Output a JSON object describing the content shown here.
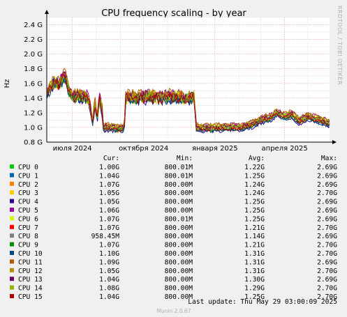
{
  "chart_data": {
    "type": "line",
    "title": "CPU frequency scaling - by year",
    "ylabel": "Hz",
    "side_label": "RRDTOOL / TOBI OETIKER",
    "ylim": [
      800000000.0,
      2500000000.0
    ],
    "y_ticks": [
      {
        "v": 800000000.0,
        "label": "0.8 G"
      },
      {
        "v": 1000000000.0,
        "label": "1.0 G"
      },
      {
        "v": 1200000000.0,
        "label": "1.2 G"
      },
      {
        "v": 1400000000.0,
        "label": "1.4 G"
      },
      {
        "v": 1600000000.0,
        "label": "1.6 G"
      },
      {
        "v": 1800000000.0,
        "label": "1.8 G"
      },
      {
        "v": 2000000000.0,
        "label": "2.0 G"
      },
      {
        "v": 2200000000.0,
        "label": "2.2 G"
      },
      {
        "v": 2400000000.0,
        "label": "2.4 G"
      }
    ],
    "x_range": [
      "2024-05-29",
      "2025-05-29"
    ],
    "x_ticks": [
      {
        "date": "2024-07-01",
        "label": "июля 2024"
      },
      {
        "date": "2024-10-01",
        "label": "октября 2024"
      },
      {
        "date": "2025-01-01",
        "label": "января 2025"
      },
      {
        "date": "2025-04-01",
        "label": "апреля 2025"
      }
    ],
    "grid": true,
    "profile": [
      {
        "date": "2024-05-29",
        "v": 1450000000.0
      },
      {
        "date": "2024-06-03",
        "v": 1550000000.0
      },
      {
        "date": "2024-06-08",
        "v": 1620000000.0
      },
      {
        "date": "2024-06-13",
        "v": 1580000000.0
      },
      {
        "date": "2024-06-18",
        "v": 1660000000.0
      },
      {
        "date": "2024-06-22",
        "v": 1720000000.0
      },
      {
        "date": "2024-06-26",
        "v": 1500000000.0
      },
      {
        "date": "2024-06-30",
        "v": 1440000000.0
      },
      {
        "date": "2024-07-05",
        "v": 1420000000.0
      },
      {
        "date": "2024-07-10",
        "v": 1450000000.0
      },
      {
        "date": "2024-07-15",
        "v": 1400000000.0
      },
      {
        "date": "2024-07-20",
        "v": 1420000000.0
      },
      {
        "date": "2024-07-24",
        "v": 1300000000.0
      },
      {
        "date": "2024-07-27",
        "v": 1050000000.0
      },
      {
        "date": "2024-07-30",
        "v": 1350000000.0
      },
      {
        "date": "2024-08-02",
        "v": 1100000000.0
      },
      {
        "date": "2024-08-05",
        "v": 1400000000.0
      },
      {
        "date": "2024-08-08",
        "v": 1300000000.0
      },
      {
        "date": "2024-08-10",
        "v": 1000000000.0
      },
      {
        "date": "2024-08-20",
        "v": 1000000000.0
      },
      {
        "date": "2024-08-30",
        "v": 980000000.0
      },
      {
        "date": "2024-09-06",
        "v": 1000000000.0
      },
      {
        "date": "2024-09-08",
        "v": 1420000000.0
      },
      {
        "date": "2024-09-20",
        "v": 1400000000.0
      },
      {
        "date": "2024-10-05",
        "v": 1420000000.0
      },
      {
        "date": "2024-10-20",
        "v": 1410000000.0
      },
      {
        "date": "2024-11-05",
        "v": 1420000000.0
      },
      {
        "date": "2024-11-20",
        "v": 1400000000.0
      },
      {
        "date": "2024-12-05",
        "v": 1420000000.0
      },
      {
        "date": "2024-12-08",
        "v": 1000000000.0
      },
      {
        "date": "2024-12-25",
        "v": 990000000.0
      },
      {
        "date": "2025-01-15",
        "v": 1000000000.0
      },
      {
        "date": "2025-02-05",
        "v": 1000000000.0
      },
      {
        "date": "2025-02-20",
        "v": 1050000000.0
      },
      {
        "date": "2025-03-01",
        "v": 1100000000.0
      },
      {
        "date": "2025-03-15",
        "v": 1140000000.0
      },
      {
        "date": "2025-03-22",
        "v": 1200000000.0
      },
      {
        "date": "2025-04-01",
        "v": 1150000000.0
      },
      {
        "date": "2025-04-10",
        "v": 1180000000.0
      },
      {
        "date": "2025-04-20",
        "v": 1080000000.0
      },
      {
        "date": "2025-05-01",
        "v": 1150000000.0
      },
      {
        "date": "2025-05-15",
        "v": 1100000000.0
      },
      {
        "date": "2025-05-29",
        "v": 1060000000.0
      }
    ],
    "series": [
      {
        "name": "CPU 0",
        "color": "#00cc00",
        "cur": "1.00G",
        "min": "800.01M",
        "avg": "1.22G",
        "max": "2.69G"
      },
      {
        "name": "CPU 1",
        "color": "#0066b3",
        "cur": "1.04G",
        "min": "800.01M",
        "avg": "1.25G",
        "max": "2.69G"
      },
      {
        "name": "CPU 2",
        "color": "#ff8000",
        "cur": "1.07G",
        "min": "800.00M",
        "avg": "1.24G",
        "max": "2.69G"
      },
      {
        "name": "CPU 3",
        "color": "#ffcc00",
        "cur": "1.05G",
        "min": "800.00M",
        "avg": "1.24G",
        "max": "2.70G"
      },
      {
        "name": "CPU 4",
        "color": "#330099",
        "cur": "1.05G",
        "min": "800.00M",
        "avg": "1.25G",
        "max": "2.69G"
      },
      {
        "name": "CPU 5",
        "color": "#990099",
        "cur": "1.06G",
        "min": "800.00M",
        "avg": "1.25G",
        "max": "2.69G"
      },
      {
        "name": "CPU 6",
        "color": "#ccff00",
        "cur": "1.07G",
        "min": "800.01M",
        "avg": "1.25G",
        "max": "2.69G"
      },
      {
        "name": "CPU 7",
        "color": "#ff0000",
        "cur": "1.07G",
        "min": "800.00M",
        "avg": "1.21G",
        "max": "2.70G"
      },
      {
        "name": "CPU 8",
        "color": "#808080",
        "cur": "958.45M",
        "min": "800.00M",
        "avg": "1.14G",
        "max": "2.69G"
      },
      {
        "name": "CPU 9",
        "color": "#008f00",
        "cur": "1.07G",
        "min": "800.00M",
        "avg": "1.21G",
        "max": "2.70G"
      },
      {
        "name": "CPU 10",
        "color": "#00487d",
        "cur": "1.10G",
        "min": "800.00M",
        "avg": "1.31G",
        "max": "2.70G"
      },
      {
        "name": "CPU 11",
        "color": "#b35a00",
        "cur": "1.09G",
        "min": "800.00M",
        "avg": "1.31G",
        "max": "2.69G"
      },
      {
        "name": "CPU 12",
        "color": "#b38f00",
        "cur": "1.05G",
        "min": "800.00M",
        "avg": "1.31G",
        "max": "2.70G"
      },
      {
        "name": "CPU 13",
        "color": "#6b006b",
        "cur": "1.04G",
        "min": "800.00M",
        "avg": "1.30G",
        "max": "2.69G"
      },
      {
        "name": "CPU 14",
        "color": "#8fb300",
        "cur": "1.08G",
        "min": "800.00M",
        "avg": "1.29G",
        "max": "2.70G"
      },
      {
        "name": "CPU 15",
        "color": "#b30000",
        "cur": "1.04G",
        "min": "800.00M",
        "avg": "1.25G",
        "max": "2.70G"
      }
    ]
  },
  "legend_headers": {
    "cur": "Cur:",
    "min": "Min:",
    "avg": "Avg:",
    "max": "Max:"
  },
  "footer": {
    "last_update": "Last update: Thu May 29 03:00:09 2025",
    "munin": "Munin 2.0.67"
  }
}
